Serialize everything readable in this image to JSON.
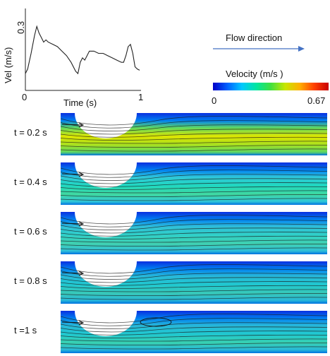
{
  "chart_data": {
    "type": "line",
    "ylabel": "Vel (m/s)",
    "xlabel": "Time (s)",
    "yticks": [
      "0.3"
    ],
    "xticks": [
      "0",
      "1"
    ],
    "xlim": [
      0,
      1
    ],
    "ylim": [
      0.08,
      0.42
    ],
    "x": [
      0.0,
      0.02,
      0.05,
      0.08,
      0.1,
      0.12,
      0.14,
      0.16,
      0.18,
      0.2,
      0.24,
      0.28,
      0.32,
      0.36,
      0.4,
      0.44,
      0.46,
      0.48,
      0.5,
      0.52,
      0.54,
      0.56,
      0.6,
      0.64,
      0.68,
      0.72,
      0.76,
      0.8,
      0.84,
      0.86,
      0.88,
      0.9,
      0.92,
      0.94,
      0.96,
      0.98,
      1.0
    ],
    "y": [
      0.13,
      0.15,
      0.22,
      0.3,
      0.34,
      0.31,
      0.29,
      0.27,
      0.28,
      0.27,
      0.26,
      0.25,
      0.23,
      0.21,
      0.18,
      0.14,
      0.13,
      0.18,
      0.2,
      0.19,
      0.21,
      0.23,
      0.23,
      0.22,
      0.22,
      0.21,
      0.2,
      0.19,
      0.18,
      0.18,
      0.21,
      0.25,
      0.26,
      0.22,
      0.16,
      0.15,
      0.145
    ]
  },
  "flow_direction": {
    "label": "Flow direction",
    "arrow_color": "#4472c4"
  },
  "colorbar": {
    "title": "Velocity (m/s )",
    "min_label": "0",
    "max_label": "0.67",
    "min": 0,
    "max": 0.67
  },
  "panels": [
    {
      "label": "t = 0.2 s"
    },
    {
      "label": "t = 0.4 s"
    },
    {
      "label": "t = 0.6 s"
    },
    {
      "label": "t = 0.8 s"
    },
    {
      "label": "t =1 s"
    }
  ]
}
